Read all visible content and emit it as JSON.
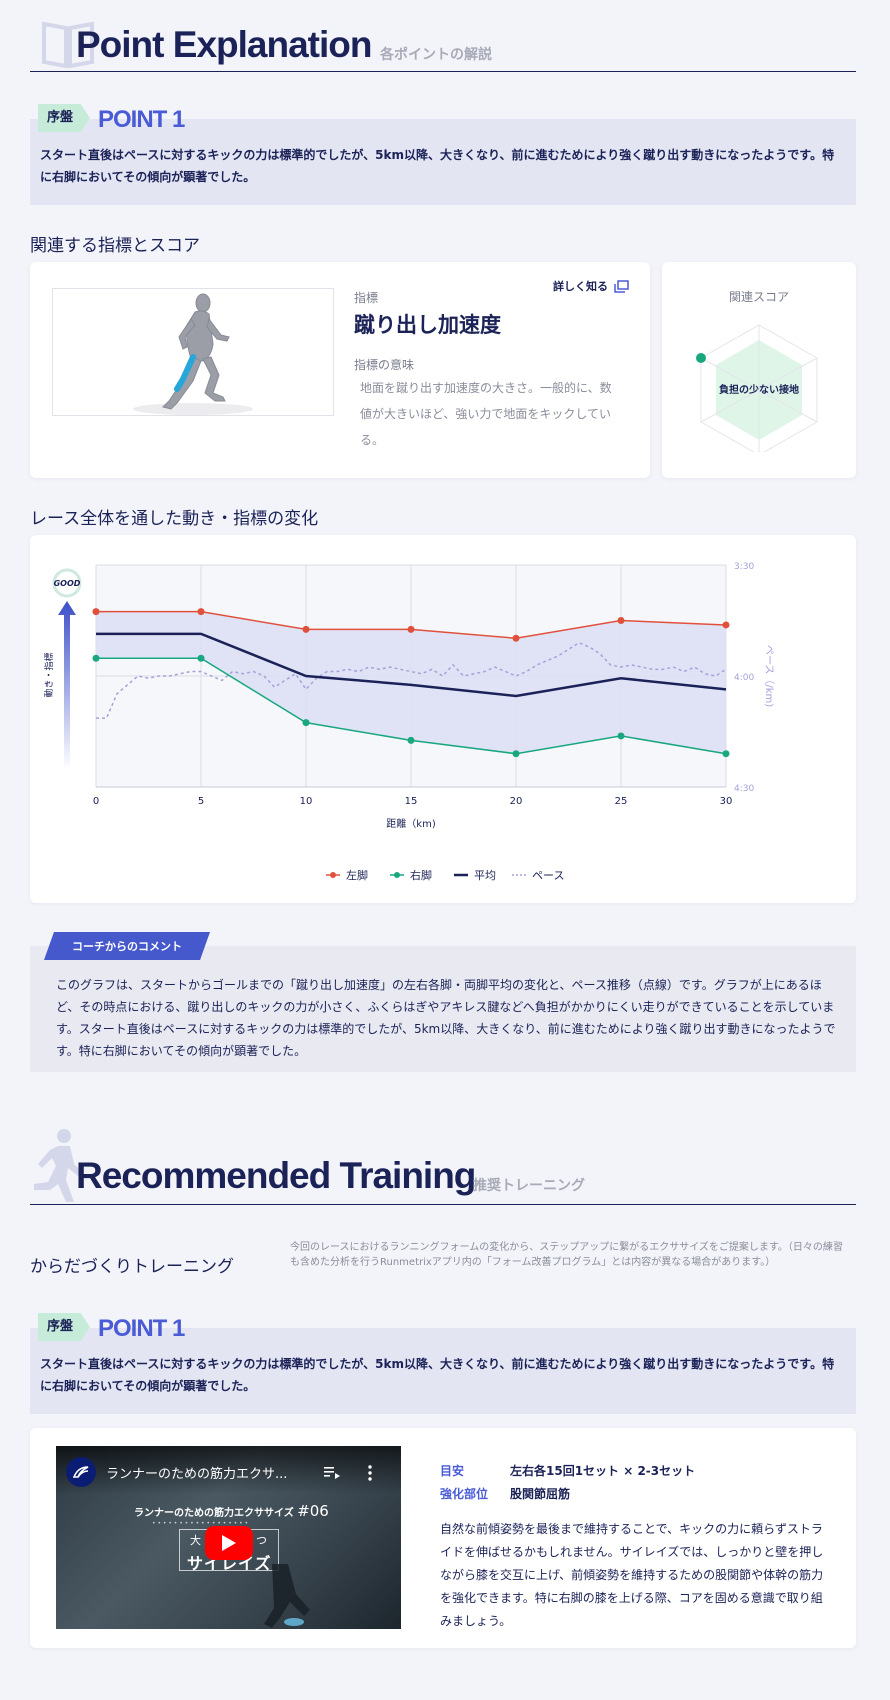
{
  "explanation": {
    "title": "Point Explanation",
    "subtitle": "各ポイントの解説",
    "point": {
      "phase": "序盤",
      "label": "POINT 1",
      "text": "スタート直後はペースに対するキックの力は標準的でしたが、5km以降、大きくなり、前に進むためにより強く蹴り出す動きになったようです。特に右脚においてその傾向が顕著でした。"
    },
    "related_heading": "関連する指標とスコア",
    "metric": {
      "caption": "指標",
      "name": "蹴り出し加速度",
      "learn_more": "詳しく知る",
      "meaning_caption": "指標の意味",
      "meaning_text": "地面を蹴り出す加速度の大きさ。一般的に、数値が大きいほど、強い力で地面をキックしている。"
    },
    "score": {
      "title": "関連スコア",
      "label": "負担の少ない接地"
    },
    "chart_heading": "レース全体を通した動き・指標の変化",
    "coach": {
      "tag": "コーチからのコメント",
      "text": "このグラフは、スタートからゴールまでの「蹴り出し加速度」の左右各脚・両脚平均の変化と、ペース推移（点線）です。グラフが上にあるほど、その時点における、蹴り出しのキックの力が小さく、ふくらはぎやアキレス腱などへ負担がかかりにくい走りができていることを示しています。スタート直後はペースに対するキックの力は標準的でしたが、5km以降、大きくなり、前に進むためにより強く蹴り出す動きになったようです。特に右脚においてその傾向が顕著でした。"
    }
  },
  "chart_data": {
    "type": "line",
    "x": [
      0,
      5,
      10,
      15,
      20,
      25,
      30
    ],
    "xlabel": "距離（km)",
    "ylabel_left": "動き・指標",
    "good_label": "GOOD",
    "ylabel_right": "ペース（/km)",
    "right_ticks": [
      "3:30",
      "4:00",
      "4:30"
    ],
    "series": [
      {
        "name": "左脚",
        "color": "#e0513c",
        "values": [
          0.79,
          0.79,
          0.71,
          0.71,
          0.67,
          0.75,
          0.73
        ]
      },
      {
        "name": "右脚",
        "color": "#18a77f",
        "values": [
          0.58,
          0.58,
          0.29,
          0.21,
          0.15,
          0.23,
          0.15
        ]
      },
      {
        "name": "平均",
        "color": "#1b2257",
        "values": [
          0.69,
          0.69,
          0.5,
          0.46,
          0.41,
          0.49,
          0.44
        ]
      }
    ],
    "pace": {
      "name": "ペース",
      "color": "#a2a3d8",
      "x": [
        0,
        0.5,
        1,
        1.5,
        2,
        2.5,
        3,
        3.5,
        4,
        4.5,
        5,
        5.5,
        6,
        6.5,
        7,
        7.5,
        8,
        8.5,
        9,
        9.5,
        10,
        10.5,
        11,
        11.5,
        12,
        12.5,
        13,
        13.5,
        14,
        14.5,
        15,
        15.5,
        16,
        16.5,
        17,
        17.5,
        18,
        18.5,
        19,
        19.5,
        20,
        20.5,
        21,
        21.5,
        22,
        22.5,
        23,
        23.5,
        24,
        24.5,
        25,
        25.5,
        26,
        26.5,
        27,
        27.5,
        28,
        28.5,
        29,
        29.5,
        30
      ],
      "values": [
        4.19,
        4.19,
        4.08,
        4.04,
        4.0,
        4.01,
        4.0,
        4.0,
        3.99,
        3.98,
        3.98,
        4.0,
        4.02,
        3.98,
        3.99,
        3.98,
        4.0,
        4.05,
        4.02,
        3.99,
        4.06,
        4.01,
        3.98,
        3.98,
        3.97,
        3.98,
        3.96,
        3.97,
        3.96,
        3.97,
        3.98,
        3.99,
        3.97,
        4.0,
        3.95,
        4.0,
        3.99,
        3.98,
        3.96,
        3.98,
        4.0,
        3.98,
        3.95,
        3.93,
        3.91,
        3.88,
        3.85,
        3.87,
        3.9,
        3.95,
        3.96,
        3.95,
        3.96,
        3.97,
        3.97,
        3.96,
        3.98,
        3.96,
        3.99,
        4.0,
        3.97
      ]
    },
    "xlim": [
      0,
      30
    ],
    "ylim": [
      0,
      1
    ],
    "pace_lim": [
      3.5,
      4.5
    ],
    "grid": true,
    "legend": "bottom"
  },
  "training": {
    "title": "Recommended Training",
    "subtitle": "推奨トレーニング",
    "heading": "からだづくりトレーニング",
    "note": "今回のレースにおけるランニングフォームの変化から、ステップアップに繋がるエクササイズをご提案します。（日々の練習も含めた分析を行うRunmetrixアプリ内の「フォーム改善プログラム」とは内容が異なる場合があります。）",
    "point": {
      "phase": "序盤",
      "label": "POINT 1",
      "text": "スタート直後はペースに対するキックの力は標準的でしたが、5km以降、大きくなり、前に進むためにより強く蹴り出す動きになったようです。特に右脚においてその傾向が顕著でした。"
    },
    "video": {
      "title": "ランナーのための筋力エクサ...",
      "caption": "ランナーのための筋力エクササイズ",
      "number": "#06",
      "name": "サイレイズ",
      "dots": "• • • • • • • • • • • • • • • • • •",
      "blurb": "大　　　　　つ"
    },
    "detail": {
      "target_label": "目安",
      "target_value": "左右各15回1セット × 2-3セット",
      "part_label": "強化部位",
      "part_value": "股関節屈筋",
      "description": "自然な前傾姿勢を最後まで維持することで、キックの力に頼らずストライドを伸ばせるかもしれません。サイレイズでは、しっかりと壁を押しながら膝を交互に上げ、前傾姿勢を維持するための股関節や体幹の筋力を強化できます。特に右脚の膝を上げる際、コアを固める意識で取り組みましょう。"
    }
  }
}
